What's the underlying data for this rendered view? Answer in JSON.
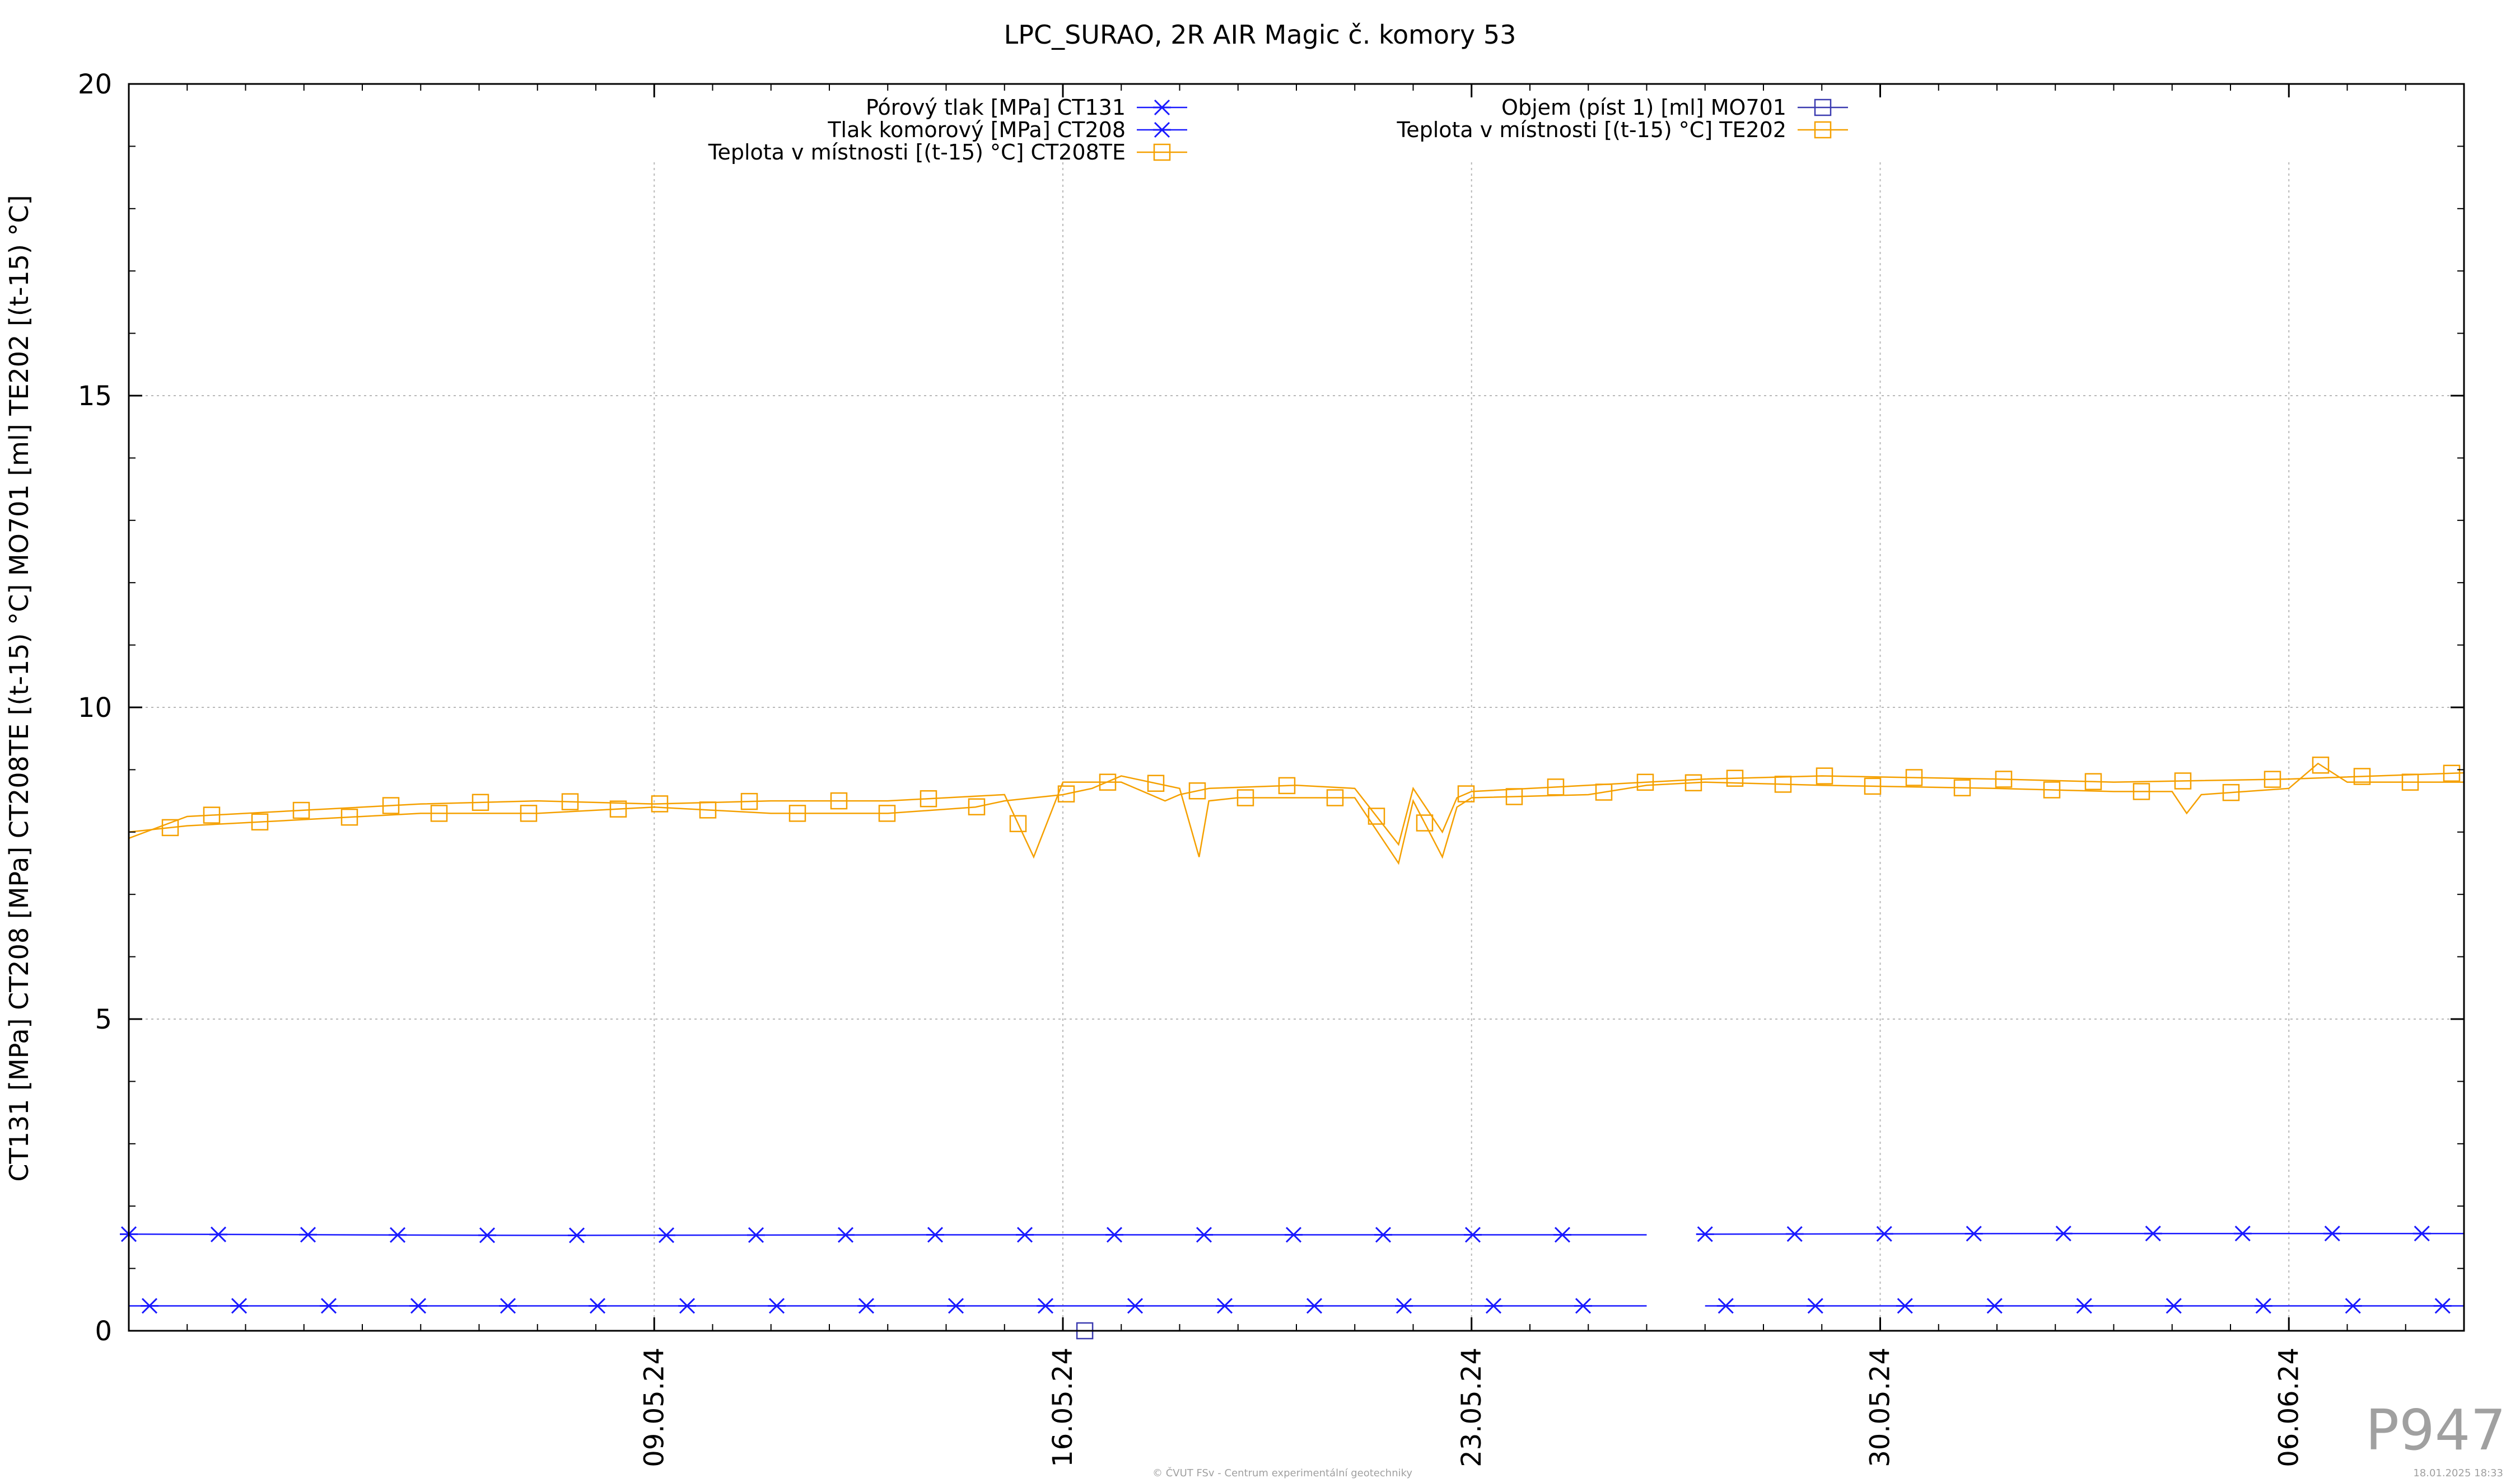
{
  "chart_data": {
    "type": "line",
    "title": "LPC_SURAO, 2R AIR Magic č. komory 53",
    "ylabel": "CT131 [MPa] CT208 [MPa] CT208TE [(t-15) °C] MO701 [ml] TE202 [(t-15) °C]",
    "xlabel": "",
    "x_range": [
      "2024-04-30",
      "2024-06-09"
    ],
    "ylim": [
      0,
      20
    ],
    "y_ticks": [
      "0",
      "5",
      "10",
      "15",
      "20"
    ],
    "x_ticks": [
      {
        "date": "2024-05-09",
        "label": "09.05.24"
      },
      {
        "date": "2024-05-16",
        "label": "16.05.24"
      },
      {
        "date": "2024-05-23",
        "label": "23.05.24"
      },
      {
        "date": "2024-05-30",
        "label": "30.05.24"
      },
      {
        "date": "2024-06-06",
        "label": "06.06.24"
      }
    ],
    "grid": true,
    "legend_position": "top",
    "series": [
      {
        "name": "Pórový tlak [MPa] CT131",
        "color": "#1a1aff",
        "marker": "asterisk",
        "x": [
          "2024-04-30",
          "2024-05-07",
          "2024-05-14",
          "2024-05-21",
          "2024-05-25T12:00",
          "2024-05-26",
          "2024-05-26T22:00",
          "2024-05-27",
          "2024-06-02",
          "2024-06-09"
        ],
        "y": [
          1.55,
          1.53,
          1.54,
          1.54,
          1.54,
          1.54,
          null,
          1.55,
          1.56,
          1.56
        ]
      },
      {
        "name": "Tlak komorový [MPa] CT208",
        "color": "#1a1aff",
        "marker": "asterisk",
        "x": [
          "2024-04-30",
          "2024-05-10",
          "2024-05-20",
          "2024-05-26",
          "2024-05-26T22:00",
          "2024-05-27",
          "2024-06-09"
        ],
        "y": [
          0.4,
          0.4,
          0.4,
          0.4,
          null,
          0.4,
          0.4
        ]
      },
      {
        "name": "Teplota v místnosti [(t-15) °C] CT208TE",
        "color": "#f5a000",
        "marker": "open-square",
        "x": [
          "2024-04-30",
          "2024-05-01",
          "2024-05-03",
          "2024-05-05",
          "2024-05-07",
          "2024-05-09",
          "2024-05-11",
          "2024-05-13",
          "2024-05-14T12:00",
          "2024-05-15",
          "2024-05-15T12:00",
          "2024-05-16",
          "2024-05-16T12:00",
          "2024-05-17",
          "2024-05-18",
          "2024-05-18T08:00",
          "2024-05-18T12:00",
          "2024-05-19",
          "2024-05-21",
          "2024-05-21T18:00",
          "2024-05-22",
          "2024-05-22T12:00",
          "2024-05-22T18:00",
          "2024-05-23",
          "2024-05-25",
          "2024-05-26",
          "2024-05-27",
          "2024-05-29",
          "2024-06-01",
          "2024-06-03",
          "2024-06-04",
          "2024-06-04T06:00",
          "2024-06-04T12:00",
          "2024-06-06",
          "2024-06-06T12:00",
          "2024-06-07",
          "2024-06-09"
        ],
        "y": [
          8.0,
          8.1,
          8.2,
          8.3,
          8.3,
          8.4,
          8.3,
          8.3,
          8.4,
          8.5,
          8.55,
          8.6,
          8.7,
          8.9,
          8.7,
          7.6,
          8.5,
          8.55,
          8.55,
          7.5,
          8.5,
          7.6,
          8.4,
          8.55,
          8.6,
          8.75,
          8.8,
          8.75,
          8.7,
          8.65,
          8.65,
          8.3,
          8.6,
          8.7,
          9.1,
          8.8,
          8.8
        ]
      },
      {
        "name": "Objem (píst 1) [ml] MO701",
        "color": "#3b3bb0",
        "marker": "open-square",
        "x": [
          "2024-05-16T09:00"
        ],
        "y": [
          0.0
        ]
      },
      {
        "name": "Teplota v místnosti [(t-15) °C] TE202",
        "color": "#f5a000",
        "marker": "open-square",
        "x": [
          "2024-04-30",
          "2024-05-01",
          "2024-05-03",
          "2024-05-05",
          "2024-05-07",
          "2024-05-09",
          "2024-05-11",
          "2024-05-13",
          "2024-05-15",
          "2024-05-15T12:00",
          "2024-05-16",
          "2024-05-17",
          "2024-05-17T18:00",
          "2024-05-18",
          "2024-05-18T12:00",
          "2024-05-20",
          "2024-05-21",
          "2024-05-21T18:00",
          "2024-05-22",
          "2024-05-22T12:00",
          "2024-05-22T18:00",
          "2024-05-23",
          "2024-05-25",
          "2024-05-27",
          "2024-05-29",
          "2024-06-01",
          "2024-06-03",
          "2024-06-06",
          "2024-06-09"
        ],
        "y": [
          7.9,
          8.25,
          8.35,
          8.45,
          8.5,
          8.45,
          8.5,
          8.5,
          8.6,
          7.6,
          8.8,
          8.8,
          8.5,
          8.6,
          8.7,
          8.75,
          8.7,
          7.8,
          8.7,
          8.0,
          8.55,
          8.65,
          8.75,
          8.85,
          8.9,
          8.85,
          8.8,
          8.85,
          8.95
        ]
      }
    ]
  },
  "footer_center": "© ČVUT FSv - Centrum experimentální geotechniky",
  "footer_right": "18.01.2025 18:33",
  "watermark": "P947"
}
